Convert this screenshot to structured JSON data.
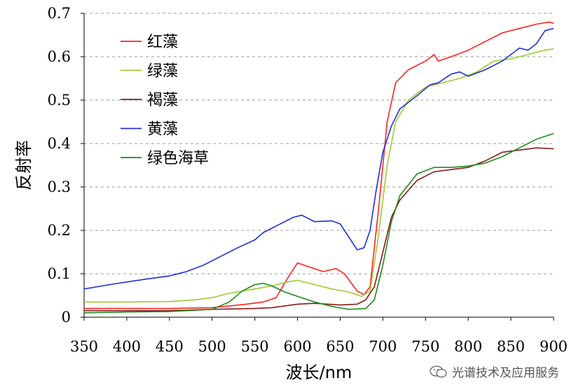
{
  "chart_data": {
    "type": "line",
    "xlabel": "波长/nm",
    "ylabel": "反射率",
    "xlim": [
      350,
      900
    ],
    "ylim": [
      0,
      0.7
    ],
    "xticks": [
      "350",
      "400",
      "450",
      "500",
      "550",
      "600",
      "650",
      "700",
      "750",
      "800",
      "850",
      "900"
    ],
    "yticks": [
      "0",
      "0.1",
      "0.2",
      "0.3",
      "0.4",
      "0.5",
      "0.6",
      "0.7"
    ],
    "grid": "horizontal dashed",
    "legend_position": "top-left",
    "series": [
      {
        "name": "红藻",
        "color": "#ff2020",
        "x": [
          350,
          400,
          450,
          500,
          540,
          560,
          575,
          590,
          600,
          615,
          630,
          645,
          655,
          670,
          678,
          685,
          695,
          705,
          715,
          730,
          750,
          760,
          765,
          780,
          800,
          820,
          840,
          860,
          880,
          895,
          900
        ],
        "y": [
          0.02,
          0.02,
          0.02,
          0.022,
          0.03,
          0.035,
          0.045,
          0.095,
          0.125,
          0.115,
          0.105,
          0.112,
          0.1,
          0.06,
          0.052,
          0.07,
          0.25,
          0.45,
          0.54,
          0.57,
          0.59,
          0.605,
          0.59,
          0.6,
          0.615,
          0.635,
          0.655,
          0.665,
          0.675,
          0.68,
          0.677
        ]
      },
      {
        "name": "绿藻",
        "color": "#9acd32",
        "x": [
          350,
          400,
          450,
          480,
          500,
          520,
          550,
          570,
          590,
          600,
          620,
          640,
          660,
          675,
          685,
          695,
          705,
          715,
          730,
          750,
          770,
          790,
          810,
          830,
          850,
          870,
          890,
          900
        ],
        "y": [
          0.035,
          0.035,
          0.036,
          0.04,
          0.045,
          0.055,
          0.065,
          0.072,
          0.082,
          0.085,
          0.075,
          0.065,
          0.058,
          0.048,
          0.06,
          0.19,
          0.35,
          0.45,
          0.5,
          0.53,
          0.54,
          0.55,
          0.565,
          0.59,
          0.595,
          0.605,
          0.615,
          0.618
        ]
      },
      {
        "name": "褐藻",
        "color": "#8b1a1a",
        "x": [
          350,
          400,
          450,
          500,
          550,
          570,
          600,
          620,
          650,
          670,
          680,
          690,
          700,
          710,
          720,
          740,
          760,
          780,
          800,
          820,
          840,
          860,
          880,
          900
        ],
        "y": [
          0.015,
          0.015,
          0.015,
          0.018,
          0.02,
          0.022,
          0.03,
          0.032,
          0.028,
          0.03,
          0.04,
          0.07,
          0.15,
          0.23,
          0.27,
          0.315,
          0.335,
          0.34,
          0.345,
          0.36,
          0.38,
          0.385,
          0.39,
          0.388
        ]
      },
      {
        "name": "黄藻",
        "color": "#1f2fdb",
        "x": [
          350,
          380,
          420,
          450,
          470,
          490,
          510,
          530,
          550,
          560,
          580,
          595,
          605,
          620,
          640,
          650,
          665,
          670,
          678,
          685,
          692,
          700,
          710,
          720,
          740,
          755,
          765,
          780,
          790,
          800,
          820,
          840,
          850,
          860,
          870,
          880,
          890,
          900
        ],
        "y": [
          0.065,
          0.075,
          0.087,
          0.095,
          0.105,
          0.12,
          0.14,
          0.16,
          0.178,
          0.195,
          0.215,
          0.23,
          0.235,
          0.22,
          0.222,
          0.215,
          0.17,
          0.155,
          0.16,
          0.2,
          0.29,
          0.38,
          0.44,
          0.48,
          0.51,
          0.535,
          0.54,
          0.56,
          0.565,
          0.555,
          0.57,
          0.59,
          0.605,
          0.62,
          0.615,
          0.63,
          0.66,
          0.665
        ]
      },
      {
        "name": "绿色海草",
        "color": "#1a8c1a",
        "x": [
          350,
          400,
          450,
          500,
          520,
          535,
          550,
          560,
          570,
          585,
          600,
          620,
          640,
          660,
          680,
          690,
          700,
          710,
          720,
          740,
          760,
          780,
          800,
          820,
          840,
          860,
          880,
          900
        ],
        "y": [
          0.01,
          0.012,
          0.013,
          0.018,
          0.035,
          0.06,
          0.075,
          0.078,
          0.072,
          0.058,
          0.048,
          0.035,
          0.025,
          0.018,
          0.02,
          0.04,
          0.12,
          0.22,
          0.28,
          0.33,
          0.345,
          0.345,
          0.348,
          0.355,
          0.37,
          0.39,
          0.41,
          0.423
        ]
      }
    ]
  },
  "watermark": {
    "text": "光谱技术及应用服务",
    "icon": "wechat-icon"
  }
}
